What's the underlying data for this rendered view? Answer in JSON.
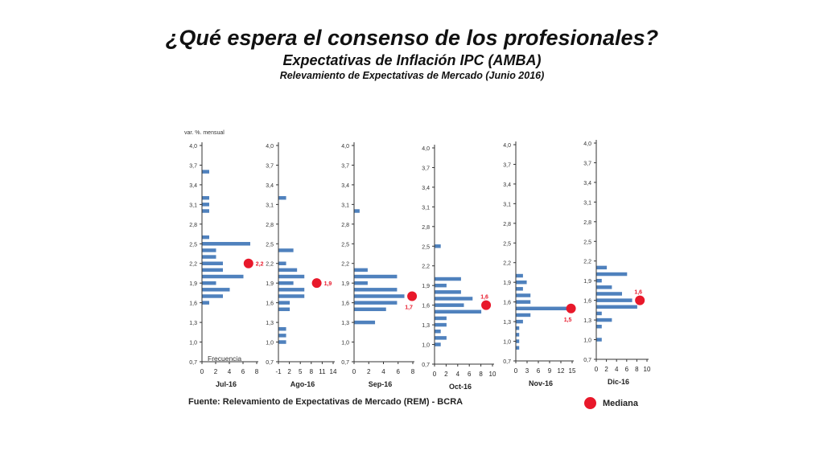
{
  "header": {
    "title": "¿Qué espera el consenso de los profesionales?",
    "subtitle": "Expectativas de Inflación IPC (AMBA)",
    "caption": "Relevamiento de Expectativas de Mercado (Junio 2016)"
  },
  "y_axis_unit_label": "var. %. mensual",
  "freq_label": "Frecuencia",
  "source": "Fuente: Relevamiento de Expectativas de Mercado (REM) - BCRA",
  "legend": {
    "median_label": "Mediana",
    "median_color": "#e8182a"
  },
  "bar_color": "#4f81bd",
  "chart_data": [
    {
      "type": "bar",
      "orientation": "horizontal",
      "title": "Jul-16",
      "y_ticks": [
        "4,0",
        "3,7",
        "3,4",
        "3,1",
        "2,8",
        "2,5",
        "2,2",
        "1,9",
        "1,6",
        "1,3",
        "1,0",
        "0,7"
      ],
      "ylim": [
        0.7,
        4.0
      ],
      "x_ticks": [
        "0",
        "2",
        "4",
        "6",
        "8"
      ],
      "xlim": [
        0,
        8
      ],
      "bins": [
        {
          "y": 3.6,
          "v": 1
        },
        {
          "y": 3.2,
          "v": 1
        },
        {
          "y": 3.1,
          "v": 1
        },
        {
          "y": 3.0,
          "v": 1
        },
        {
          "y": 2.6,
          "v": 1
        },
        {
          "y": 2.5,
          "v": 7
        },
        {
          "y": 2.4,
          "v": 2
        },
        {
          "y": 2.3,
          "v": 2
        },
        {
          "y": 2.2,
          "v": 3
        },
        {
          "y": 2.1,
          "v": 3
        },
        {
          "y": 2.0,
          "v": 6
        },
        {
          "y": 1.9,
          "v": 2
        },
        {
          "y": 1.8,
          "v": 4
        },
        {
          "y": 1.7,
          "v": 3
        },
        {
          "y": 1.6,
          "v": 1
        }
      ],
      "median": 2.2,
      "median_label": "2,2",
      "median_x": 6.8
    },
    {
      "type": "bar",
      "orientation": "horizontal",
      "title": "Ago-16",
      "y_ticks": [
        "4,0",
        "3,7",
        "3,4",
        "3,1",
        "2,8",
        "2,5",
        "2,2",
        "1,9",
        "1,6",
        "1,3",
        "1,0",
        "0,7"
      ],
      "ylim": [
        0.7,
        4.0
      ],
      "x_ticks": [
        "-1",
        "2",
        "5",
        "8",
        "11",
        "14"
      ],
      "xlim": [
        -1,
        14
      ],
      "bins": [
        {
          "y": 3.2,
          "v": 1
        },
        {
          "y": 2.4,
          "v": 3
        },
        {
          "y": 2.2,
          "v": 1
        },
        {
          "y": 2.1,
          "v": 4
        },
        {
          "y": 2.0,
          "v": 6
        },
        {
          "y": 1.9,
          "v": 3
        },
        {
          "y": 1.8,
          "v": 6
        },
        {
          "y": 1.7,
          "v": 6
        },
        {
          "y": 1.6,
          "v": 2
        },
        {
          "y": 1.5,
          "v": 2
        },
        {
          "y": 1.2,
          "v": 1
        },
        {
          "y": 1.1,
          "v": 1
        },
        {
          "y": 1.0,
          "v": 1
        }
      ],
      "median": 1.9,
      "median_label": "1,9",
      "median_x": 9.5
    },
    {
      "type": "bar",
      "orientation": "horizontal",
      "title": "Sep-16",
      "y_ticks": [
        "4,0",
        "3,7",
        "3,4",
        "3,1",
        "2,8",
        "2,5",
        "2,2",
        "1,9",
        "1,6",
        "1,3",
        "1,0",
        "0,7"
      ],
      "ylim": [
        0.7,
        4.0
      ],
      "x_ticks": [
        "0",
        "2",
        "4",
        "6",
        "8"
      ],
      "xlim": [
        0,
        8
      ],
      "bins": [
        {
          "y": 3.0,
          "v": 0.7
        },
        {
          "y": 2.1,
          "v": 1.8
        },
        {
          "y": 2.0,
          "v": 5.8
        },
        {
          "y": 1.9,
          "v": 1.8
        },
        {
          "y": 1.8,
          "v": 5.8
        },
        {
          "y": 1.7,
          "v": 6.8
        },
        {
          "y": 1.6,
          "v": 5.8
        },
        {
          "y": 1.5,
          "v": 4.3
        },
        {
          "y": 1.3,
          "v": 2.8
        }
      ],
      "median": 1.7,
      "median_label": "1,7",
      "median_x": 7.9
    },
    {
      "type": "bar",
      "orientation": "horizontal",
      "title": "Oct-16",
      "y_ticks": [
        "4,0",
        "3,7",
        "3,4",
        "3,1",
        "2,8",
        "2,5",
        "2,2",
        "1,9",
        "1,6",
        "1,3",
        "1,0",
        "0,7"
      ],
      "ylim": [
        0.7,
        4.0
      ],
      "x_ticks": [
        "0",
        "2",
        "4",
        "6",
        "8",
        "10"
      ],
      "xlim": [
        0,
        10
      ],
      "bins": [
        {
          "y": 2.5,
          "v": 1
        },
        {
          "y": 2.0,
          "v": 4.5
        },
        {
          "y": 1.9,
          "v": 2
        },
        {
          "y": 1.8,
          "v": 4.5
        },
        {
          "y": 1.7,
          "v": 6.5
        },
        {
          "y": 1.6,
          "v": 5
        },
        {
          "y": 1.5,
          "v": 8
        },
        {
          "y": 1.4,
          "v": 2
        },
        {
          "y": 1.3,
          "v": 2
        },
        {
          "y": 1.2,
          "v": 1
        },
        {
          "y": 1.1,
          "v": 2
        },
        {
          "y": 1.0,
          "v": 1
        }
      ],
      "median": 1.6,
      "median_label": "1,6",
      "median_x": 8.9
    },
    {
      "type": "bar",
      "orientation": "horizontal",
      "title": "Nov-16",
      "y_ticks": [
        "4,0",
        "3,7",
        "3,4",
        "3,1",
        "2,8",
        "2,5",
        "2,2",
        "1,9",
        "1,6",
        "1,3",
        "1,0",
        "0,7"
      ],
      "ylim": [
        0.7,
        4.0
      ],
      "x_ticks": [
        "0",
        "3",
        "6",
        "9",
        "12",
        "15"
      ],
      "xlim": [
        0,
        15
      ],
      "bins": [
        {
          "y": 2.0,
          "v": 1.8
        },
        {
          "y": 1.9,
          "v": 2.8
        },
        {
          "y": 1.8,
          "v": 1.8
        },
        {
          "y": 1.7,
          "v": 3.8
        },
        {
          "y": 1.6,
          "v": 3.8
        },
        {
          "y": 1.5,
          "v": 13.8
        },
        {
          "y": 1.4,
          "v": 3.8
        },
        {
          "y": 1.3,
          "v": 1.8
        },
        {
          "y": 1.2,
          "v": 0.8
        },
        {
          "y": 1.1,
          "v": 0.8
        },
        {
          "y": 1.0,
          "v": 0.8
        },
        {
          "y": 0.9,
          "v": 0.8
        }
      ],
      "median": 1.5,
      "median_label": "1,5",
      "median_x": 14.7
    },
    {
      "type": "bar",
      "orientation": "horizontal",
      "title": "Dic-16",
      "y_ticks": [
        "4,0",
        "3,7",
        "3,4",
        "3,1",
        "2,8",
        "2,5",
        "2,2",
        "1,9",
        "1,6",
        "1,3",
        "1,0",
        "0,7"
      ],
      "ylim": [
        0.7,
        4.0
      ],
      "x_ticks": [
        "0",
        "2",
        "4",
        "6",
        "8",
        "10"
      ],
      "xlim": [
        0,
        10
      ],
      "bins": [
        {
          "y": 2.1,
          "v": 2
        },
        {
          "y": 2.0,
          "v": 6
        },
        {
          "y": 1.9,
          "v": 1
        },
        {
          "y": 1.8,
          "v": 3
        },
        {
          "y": 1.7,
          "v": 5
        },
        {
          "y": 1.6,
          "v": 7
        },
        {
          "y": 1.5,
          "v": 8
        },
        {
          "y": 1.4,
          "v": 1
        },
        {
          "y": 1.3,
          "v": 3
        },
        {
          "y": 1.2,
          "v": 1
        },
        {
          "y": 1.0,
          "v": 1
        }
      ],
      "median": 1.6,
      "median_label": "1,6",
      "median_x": 8.6
    }
  ]
}
